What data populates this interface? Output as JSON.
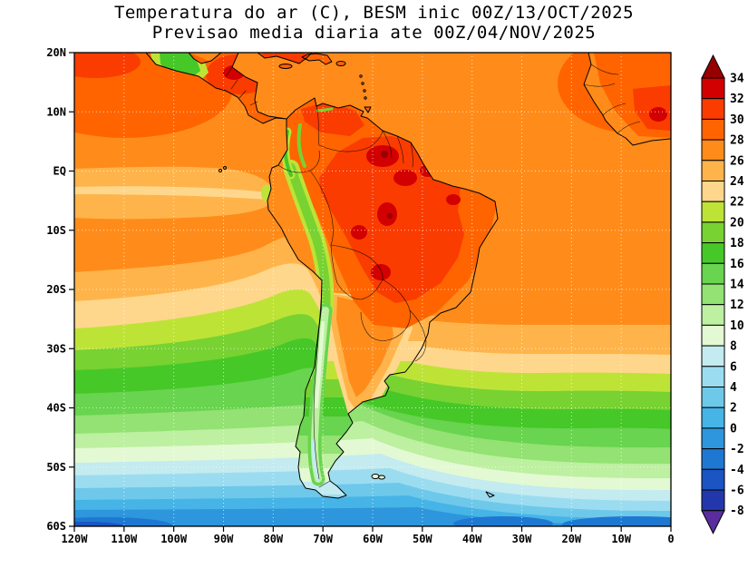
{
  "title": {
    "line1": "Temperatura do ar (C), BESM inic 00Z/13/OCT/2025",
    "line2": "Previsao media diaria ate 00Z/04/NOV/2025"
  },
  "axes": {
    "lat_labels": [
      "20N",
      "10N",
      "EQ",
      "10S",
      "20S",
      "30S",
      "40S",
      "50S",
      "60S"
    ],
    "lon_labels": [
      "120W",
      "110W",
      "100W",
      "90W",
      "80W",
      "70W",
      "60W",
      "50W",
      "40W",
      "30W",
      "20W",
      "10W",
      "0"
    ]
  },
  "colorbar": {
    "tick_labels": [
      "34",
      "32",
      "30",
      "28",
      "26",
      "24",
      "22",
      "20",
      "18",
      "16",
      "14",
      "12",
      "10",
      "8",
      "6",
      "4",
      "2",
      "0",
      "-2",
      "-4",
      "-6",
      "-8"
    ],
    "under_key": "-10"
  },
  "palette": {
    "34": "#960000",
    "32": "#d20000",
    "30": "#fa3c00",
    "28": "#ff6400",
    "26": "#ff8c1a",
    "24": "#ffb44b",
    "22": "#ffd78c",
    "20": "#bee337",
    "18": "#78d232",
    "16": "#46c828",
    "14": "#69d44f",
    "12": "#93e273",
    "10": "#bdf0a0",
    "8": "#e3f9d3",
    "6": "#c3ebf0",
    "4": "#9cdcf0",
    "2": "#6ec8ea",
    "0": "#46b4e6",
    "-2": "#2d96dc",
    "-4": "#1e78d2",
    "-6": "#1a55c3",
    "-8": "#2337ad",
    "-10": "#5a2d9e"
  },
  "chart_data": {
    "type": "heatmap",
    "title": "Temperatura do ar (C), BESM inic 00Z/13/OCT/2025",
    "subtitle": "Previsao media diaria ate 00Z/04/NOV/2025",
    "variable": "Temperatura do ar",
    "units": "C",
    "model": "BESM",
    "init": "00Z/13/OCT/2025",
    "valid_until": "00Z/04/NOV/2025",
    "lon_range_deg": [
      -120,
      0
    ],
    "lat_range_deg": [
      -60,
      20
    ],
    "contour_levels": [
      -8,
      -6,
      -4,
      -2,
      0,
      2,
      4,
      6,
      8,
      10,
      12,
      14,
      16,
      18,
      20,
      22,
      24,
      26,
      28,
      30,
      32,
      34
    ],
    "legend_position": "right",
    "grid_on": true,
    "grid_estimate": {
      "lons": [
        -120,
        -110,
        -100,
        -90,
        -80,
        -70,
        -60,
        -50,
        -40,
        -30,
        -20,
        -10,
        0
      ],
      "lats": [
        20,
        10,
        0,
        -10,
        -20,
        -30,
        -40,
        -50,
        -60
      ],
      "values_c": [
        [
          27,
          27,
          22,
          28,
          27,
          27,
          27,
          27,
          27,
          27,
          26,
          27,
          28
        ],
        [
          28,
          27,
          27,
          27,
          27,
          28,
          28,
          27,
          27,
          27,
          27,
          28,
          30
        ],
        [
          25,
          25,
          25,
          25,
          26,
          29,
          31,
          30,
          28,
          27,
          27,
          27,
          27
        ],
        [
          26,
          26,
          26,
          26,
          25,
          20,
          32,
          31,
          29,
          27,
          26,
          26,
          26
        ],
        [
          24,
          24,
          24,
          24,
          23,
          16,
          30,
          28,
          26,
          25,
          25,
          25,
          25
        ],
        [
          19,
          19,
          19,
          19,
          18,
          13,
          24,
          21,
          20,
          20,
          20,
          20,
          21
        ],
        [
          15,
          15,
          15,
          15,
          14,
          11,
          14,
          16,
          16,
          16,
          17,
          17,
          17
        ],
        [
          8,
          8,
          8,
          8,
          8,
          7,
          8,
          9,
          9,
          10,
          10,
          10,
          10
        ],
        [
          0,
          0,
          1,
          1,
          1,
          1,
          1,
          1,
          1,
          1,
          1,
          1,
          1
        ]
      ]
    },
    "features": [
      "Warm core 30-34 C over Amazonia / central Brazil / Paraguay",
      "Cold Andes strip 8-16 C running along western South America",
      "Humboldt cold tongue (green) off Chile/Peru coast",
      "Zonal cooling southward: near 0 to -8 C approaching 60S"
    ]
  }
}
